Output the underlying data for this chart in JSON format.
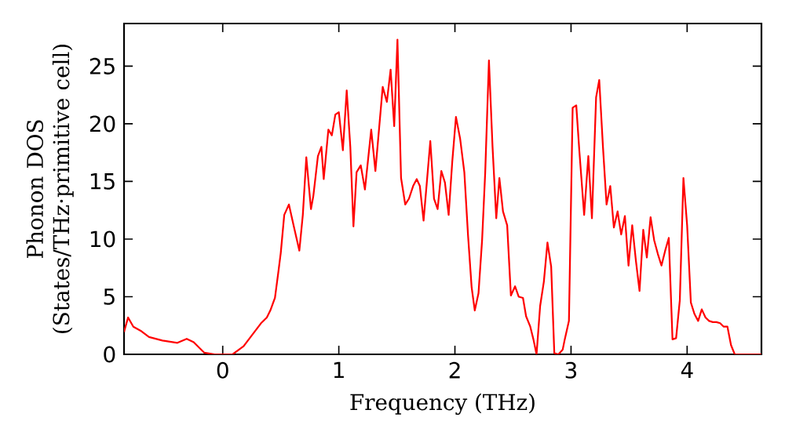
{
  "chart_data": {
    "type": "line",
    "xlabel": "Frequency (THz)",
    "ylabel": "Phonon DOS (States/THz·primitive cell)",
    "xlim": [
      -0.85,
      4.64
    ],
    "ylim": [
      0,
      28.7
    ],
    "xticks": [
      0,
      1,
      2,
      3,
      4
    ],
    "yticks": [
      0,
      5,
      10,
      15,
      20,
      25
    ],
    "color": "#ff0000",
    "x": [
      -0.85,
      -0.815,
      -0.77,
      -0.7,
      -0.635,
      -0.52,
      -0.39,
      -0.31,
      -0.25,
      -0.16,
      -0.07,
      0.085,
      0.18,
      0.24,
      0.33,
      0.38,
      0.41,
      0.45,
      0.48,
      0.5,
      0.53,
      0.57,
      0.61,
      0.66,
      0.69,
      0.72,
      0.76,
      0.78,
      0.82,
      0.85,
      0.87,
      0.91,
      0.94,
      0.97,
      1.0,
      1.035,
      1.068,
      1.099,
      1.126,
      1.153,
      1.189,
      1.225,
      1.279,
      1.315,
      1.378,
      1.414,
      1.446,
      1.477,
      1.505,
      1.536,
      1.572,
      1.604,
      1.64,
      1.671,
      1.698,
      1.73,
      1.757,
      1.788,
      1.82,
      1.851,
      1.883,
      1.914,
      1.946,
      1.977,
      2.009,
      2.045,
      2.081,
      2.113,
      2.144,
      2.171,
      2.203,
      2.234,
      2.261,
      2.293,
      2.324,
      2.356,
      2.383,
      2.414,
      2.45,
      2.482,
      2.518,
      2.549,
      2.586,
      2.613,
      2.649,
      2.676,
      2.703,
      2.734,
      2.766,
      2.797,
      2.829,
      2.856,
      2.892,
      2.928,
      2.946,
      2.982,
      3.014,
      3.045,
      3.072,
      3.113,
      3.149,
      3.18,
      3.216,
      3.243,
      3.275,
      3.306,
      3.338,
      3.369,
      3.401,
      3.432,
      3.464,
      3.495,
      3.527,
      3.559,
      3.59,
      3.622,
      3.653,
      3.685,
      3.716,
      3.748,
      3.779,
      3.811,
      3.842,
      3.874,
      3.905,
      3.937,
      3.968,
      4.0,
      4.032,
      4.063,
      4.095,
      4.126,
      4.158,
      4.189,
      4.221,
      4.252,
      4.284,
      4.315,
      4.347,
      4.378,
      4.41,
      4.64
    ],
    "values": [
      1.95,
      3.2,
      2.4,
      2.0,
      1.5,
      1.2,
      1.0,
      1.35,
      1.05,
      0.15,
      0,
      0,
      0.7,
      1.5,
      2.7,
      3.2,
      3.8,
      4.9,
      7.2,
      8.8,
      12.1,
      13.0,
      11.2,
      9.0,
      12.1,
      17.1,
      12.6,
      13.7,
      17.2,
      18.0,
      15.2,
      19.5,
      19.0,
      20.8,
      21.0,
      17.7,
      22.9,
      18.0,
      11.1,
      15.8,
      16.4,
      14.3,
      19.5,
      15.9,
      23.2,
      21.9,
      24.7,
      19.8,
      27.3,
      15.3,
      13.0,
      13.5,
      14.6,
      15.2,
      14.6,
      11.6,
      14.8,
      18.5,
      13.5,
      12.6,
      15.9,
      14.9,
      12.1,
      16.7,
      20.6,
      18.7,
      15.8,
      10.3,
      5.8,
      3.8,
      5.3,
      9.9,
      15.8,
      25.5,
      18.0,
      11.8,
      15.3,
      12.4,
      11.2,
      5.1,
      5.9,
      5.0,
      4.9,
      3.3,
      2.4,
      1.3,
      0,
      4.2,
      6.3,
      9.7,
      7.6,
      0.1,
      0,
      0.4,
      1.3,
      2.9,
      21.4,
      21.6,
      17.6,
      12.1,
      17.2,
      11.8,
      22.3,
      23.8,
      18.0,
      13.0,
      14.6,
      11.0,
      12.4,
      10.4,
      12.0,
      7.7,
      11.2,
      8.1,
      5.5,
      10.8,
      8.4,
      11.9,
      9.9,
      8.7,
      7.7,
      9.0,
      10.1,
      1.3,
      1.4,
      4.7,
      15.3,
      11.2,
      4.5,
      3.5,
      2.9,
      3.9,
      3.2,
      2.9,
      2.8,
      2.8,
      2.7,
      2.4,
      2.4,
      0.8,
      0,
      0
    ]
  }
}
